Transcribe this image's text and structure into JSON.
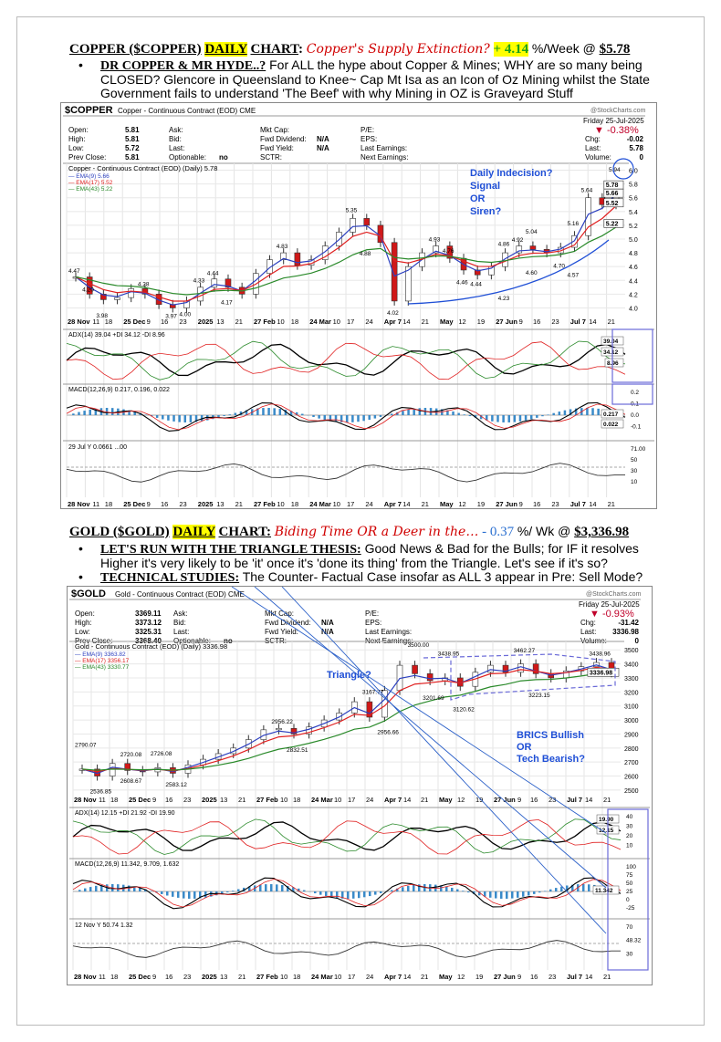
{
  "copper": {
    "heading": {
      "main": "COPPER ($COPPER)",
      "daily": "DAILY",
      "chart": "CHART",
      "colon": ":",
      "tagline": "Copper's Supply Extinction?",
      "change": "+ 4.14",
      "suffix": "%/Week @",
      "price": "$5.78"
    },
    "bullet": {
      "title": "DR COPPER & MR HYDE..?",
      "text": " For ALL the hype about Copper & Mines; WHY are so many being CLOSED? Glencore in Queensland to Knee~ Cap Mt Isa as an Icon of Oz Mining whilst the State Government fails to understand 'The Beef' with why Mining in OZ is Graveyard Stuff"
    },
    "chart": {
      "symbol": "$COPPER",
      "name": "Copper - Continuous Contract (EOD) CME",
      "source": "@StockCharts.com",
      "date": "Friday 25-Jul-2025",
      "pct": "▼ -0.38%",
      "stats": [
        [
          "Open:",
          "5.81"
        ],
        [
          "High:",
          "5.81"
        ],
        [
          "Low:",
          "5.72"
        ],
        [
          "Prev Close:",
          "5.81"
        ]
      ],
      "mid": [
        [
          "Ask:",
          ""
        ],
        [
          "Bid:",
          ""
        ],
        [
          "Last:",
          ""
        ],
        [
          "Optionable:",
          "no"
        ]
      ],
      "mkt": [
        [
          "Mkt Cap:",
          ""
        ],
        [
          "Fwd Dividend:",
          "N/A"
        ],
        [
          "Fwd Yield:",
          "N/A"
        ],
        [
          "SCTR:",
          ""
        ]
      ],
      "pe": [
        "P/E:",
        "EPS:",
        "Last Earnings:",
        "Next Earnings:"
      ],
      "right": [
        [
          "Chg:",
          "-0.02"
        ],
        [
          "Last:",
          "5.78"
        ],
        [
          "Volume:",
          "0"
        ]
      ],
      "legend": [
        "Copper - Continuous Contract (EOD) (Daily) 5.78",
        "EMA(9) 5.66",
        "EMA(17) 5.52",
        "EMA(43) 5.22"
      ],
      "annotation": [
        "Daily Indecision?",
        "Signal",
        "OR",
        "Siren?"
      ],
      "adx": "ADX(14) 39.04 +DI 34.12 -DI 8.96",
      "macd": "MACD(12,26,9) 0.217, 0.196, 0.022",
      "rsi": "29 Jul Y 0.0661 ...00",
      "yticks": [
        "6.0",
        "5.8",
        "5.6",
        "5.4",
        "5.2",
        "5.0",
        "4.8",
        "4.6",
        "4.4",
        "4.2",
        "4.0"
      ],
      "ylim": [
        3.9,
        6.1
      ],
      "labels": [
        [
          "4.47",
          0
        ],
        [
          "4.20",
          1
        ],
        [
          "3.98",
          2
        ],
        [
          "4.28",
          5
        ],
        [
          "3.97",
          7
        ],
        [
          "4.00",
          8
        ],
        [
          "4.33",
          9
        ],
        [
          "4.44",
          10
        ],
        [
          "4.17",
          11
        ],
        [
          "4.83",
          15
        ],
        [
          "5.35",
          20
        ],
        [
          "4.88",
          21
        ],
        [
          "4.02",
          23
        ],
        [
          "4.93",
          26
        ],
        [
          "4.76",
          27
        ],
        [
          "4.46",
          28
        ],
        [
          "4.44",
          29
        ],
        [
          "4.86",
          31
        ],
        [
          "4.92",
          32
        ],
        [
          "5.04",
          33
        ],
        [
          "4.23",
          31
        ],
        [
          "4.60",
          33
        ],
        [
          "4.70",
          35
        ],
        [
          "5.16",
          36
        ],
        [
          "5.64",
          37
        ],
        [
          "4.57",
          36
        ],
        [
          "5.94",
          39
        ]
      ],
      "closes": [
        4.45,
        4.2,
        4.12,
        4.15,
        4.28,
        4.2,
        4.05,
        4.0,
        4.1,
        4.3,
        4.42,
        4.3,
        4.2,
        4.5,
        4.7,
        4.8,
        4.62,
        4.7,
        4.9,
        5.1,
        5.3,
        5.2,
        4.95,
        4.1,
        4.6,
        4.8,
        4.9,
        4.72,
        4.55,
        4.48,
        4.6,
        4.8,
        4.9,
        4.85,
        4.8,
        4.88,
        5.05,
        5.6,
        5.5,
        5.78
      ],
      "rightlabels": [
        "5.78",
        "5.66",
        "5.52",
        "5.22"
      ],
      "adxlabels": [
        "39.04",
        "34.12",
        "8.96"
      ],
      "macdticks": [
        "0.2",
        "0.1",
        "0.0",
        "-0.1"
      ],
      "macdlabels": [
        "0.217",
        "0.022"
      ],
      "rsiticks": [
        "71.00",
        "50",
        "30",
        "10"
      ]
    }
  },
  "gold": {
    "heading": {
      "main": "GOLD ($GOLD)",
      "daily": "DAILY",
      "chart": "CHART:",
      "tagline": "Biding Time OR a Deer in the…",
      "change": "- 0.37",
      "suffix": "%/ Wk @",
      "price": "$3,336.98"
    },
    "bullets": [
      {
        "title": "LET'S RUN WITH THE TRIANGLE THESIS:",
        "text": " Good News & Bad for the Bulls; for IF it resolves Higher it's very likely to be 'it' once it's 'done its thing' from the Triangle. Let's see if it's so?"
      },
      {
        "title": "TECHNICAL STUDIES:",
        "text": " The Counter- Factual Case insofar as ALL 3 appear in Pre: Sell Mode?"
      }
    ],
    "chart": {
      "symbol": "$GOLD",
      "name": "Gold - Continuous Contract (EOD) CME",
      "source": "@StockCharts.com",
      "date": "Friday 25-Jul-2025",
      "pct": "▼ -0.93%",
      "stats": [
        [
          "Open:",
          "3369.11"
        ],
        [
          "High:",
          "3373.12"
        ],
        [
          "Low:",
          "3325.31"
        ],
        [
          "Prev Close:",
          "3368.40"
        ]
      ],
      "mid": [
        [
          "Ask:",
          ""
        ],
        [
          "Bid:",
          ""
        ],
        [
          "Last:",
          ""
        ],
        [
          "Optionable:",
          "no"
        ]
      ],
      "mkt": [
        [
          "Mkt Cap:",
          ""
        ],
        [
          "Fwd Dividend:",
          "N/A"
        ],
        [
          "Fwd Yield:",
          "N/A"
        ],
        [
          "SCTR:",
          ""
        ]
      ],
      "pe": [
        "P/E:",
        "EPS:",
        "Last Earnings:",
        "Next Earnings:"
      ],
      "right": [
        [
          "Chg:",
          "-31.42"
        ],
        [
          "Last:",
          "3336.98"
        ],
        [
          "Volume:",
          "0"
        ]
      ],
      "legend": [
        "Gold - Continuous Contract (EOD) (Daily) 3336.98",
        "EMA(9) 3363.82",
        "EMA(17) 3356.17",
        "EMA(43) 3330.77"
      ],
      "annotation": [
        "Triangle?"
      ],
      "annotation2": [
        "BRICS Bullish",
        "OR",
        "Tech Bearish?"
      ],
      "adx": "ADX(14) 12.15 +DI 21.92 -DI 19.90",
      "macd": "MACD(12,26,9) 11.342, 9.709, 1.632",
      "rsi": "12 Nov Y 50.74 1.32",
      "yticks": [
        "3500",
        "3400",
        "3300",
        "3200",
        "3100",
        "3000",
        "2900",
        "2800",
        "2700",
        "2600",
        "2500"
      ],
      "ylim": [
        2480,
        3560
      ],
      "labels": [
        [
          "2790.07",
          0
        ],
        [
          "2536.85",
          1
        ],
        [
          "2720.08",
          3
        ],
        [
          "2608.67",
          3
        ],
        [
          "2726.08",
          5
        ],
        [
          "2583.12",
          6
        ],
        [
          "2956.22",
          13
        ],
        [
          "2832.51",
          14
        ],
        [
          "3167.77",
          19
        ],
        [
          "2956.66",
          20
        ],
        [
          "3500.00",
          22
        ],
        [
          "3201.69",
          23
        ],
        [
          "3438.95",
          24
        ],
        [
          "3120.62",
          25
        ],
        [
          "3462.27",
          29
        ],
        [
          "3223.15",
          30
        ],
        [
          "3438.96",
          34
        ]
      ],
      "closes": [
        2650,
        2600,
        2690,
        2640,
        2630,
        2660,
        2620,
        2680,
        2720,
        2760,
        2800,
        2860,
        2930,
        2940,
        2900,
        2950,
        3000,
        3050,
        3130,
        3020,
        3210,
        3390,
        3330,
        3280,
        3300,
        3240,
        3340,
        3390,
        3340,
        3400,
        3330,
        3300,
        3350,
        3380,
        3410,
        3337
      ],
      "rightlabels": [
        "3336.98"
      ],
      "adxlabels": [
        "19.90",
        "12.15"
      ],
      "adxticks": [
        "40",
        "30",
        "20",
        "10"
      ],
      "macdticks": [
        "100",
        "75",
        "50",
        "25",
        "0",
        "-25"
      ],
      "macdlabels": [
        "11.342"
      ],
      "rsiticks": [
        "70",
        "48.32",
        "30"
      ]
    }
  },
  "axis": [
    "28 Nov",
    "11",
    "18",
    "25 Dec",
    "9",
    "16",
    "23",
    "2025",
    "13",
    "21",
    "27 Feb",
    "10",
    "18",
    "24 Mar",
    "10",
    "17",
    "24",
    "Apr 7",
    "14",
    "21",
    "May",
    "12",
    "19",
    "27 Jun",
    "9",
    "16",
    "23",
    "Jul 7",
    "14",
    "21"
  ],
  "colors": {
    "ema9": "#2b3fbf",
    "ema17": "#e02020",
    "ema43": "#2a8a2a",
    "annot": "#1f4fd6",
    "neg": "#c0002a"
  }
}
